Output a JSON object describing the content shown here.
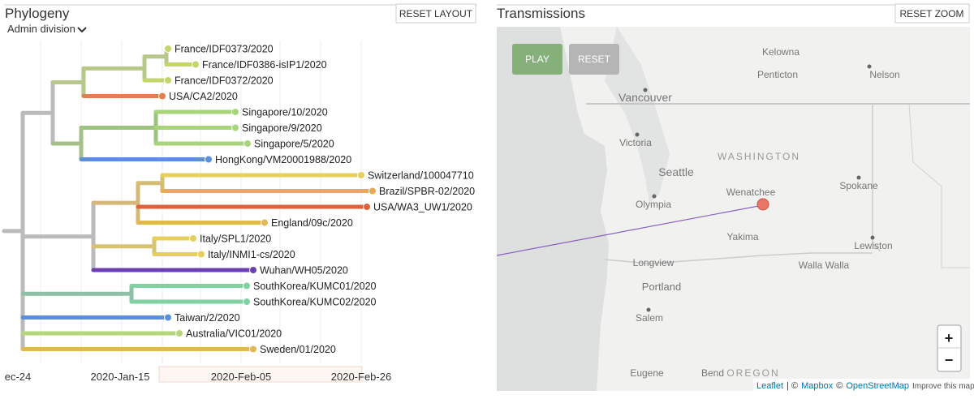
{
  "phylogeny": {
    "title": "Phylogeny",
    "reset_button": "RESET LAYOUT",
    "color_by": "Admin division",
    "tips": [
      "France/IDF0373/2020",
      "France/IDF0386-isIP1/2020",
      "France/IDF0372/2020",
      "USA/CA2/2020",
      "Singapore/10/2020",
      "Singapore/9/2020",
      "Singapore/5/2020",
      "HongKong/VM20001988/2020",
      "Switzerland/100047710",
      "Brazil/SPBR-02/2020",
      "USA/WA3_UW1/2020",
      "England/09c/2020",
      "Italy/SPL1/2020",
      "Italy/INMI1-cs/2020",
      "Wuhan/WH05/2020",
      "SouthKorea/KUMC01/2020",
      "SouthKorea/KUMC02/2020",
      "Taiwan/2/2020",
      "Australia/VIC01/2020",
      "Sweden/01/2020"
    ],
    "axis_labels": [
      "ec-24",
      "2020-Jan-15",
      "2020-Feb-05",
      "2020-Feb-26"
    ]
  },
  "transmissions": {
    "title": "Transmissions",
    "reset_button": "RESET ZOOM",
    "play_button": "PLAY",
    "reset_animation_button": "RESET",
    "places": [
      "Kelowna",
      "Penticton",
      "Nelson",
      "Vancouver",
      "Victoria",
      "WASHINGTON",
      "Seattle",
      "Olympia",
      "Wenatchee",
      "Spokane",
      "Yakima",
      "Lewiston",
      "Longview",
      "Walla Walla",
      "Portland",
      "Salem",
      "Eugene",
      "Bend",
      "OREGON"
    ],
    "zoom_in": "+",
    "zoom_out": "−",
    "attribution": [
      "Leaflet",
      "| ©",
      "Mapbox",
      "©",
      "OpenStreetMap",
      "Improve this map"
    ]
  }
}
